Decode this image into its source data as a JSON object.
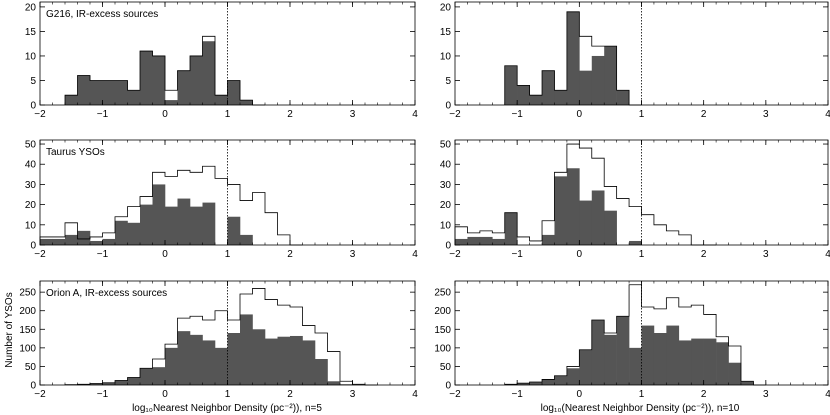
{
  "figure": {
    "ylabel_left": "Number of YSOs",
    "xlabel_left": "log₁₀Nearest Neighbor Density (pc⁻²)), n=5",
    "xlabel_right": "log₁₀(Nearest Neighbor Density (pc⁻²)), n=10"
  },
  "chart_data": [
    {
      "type": "bar",
      "panel": "row1-left",
      "annotation": "G216, IR-excess sources",
      "bin_width": 0.2,
      "xlim": [
        -2,
        4
      ],
      "ylim": [
        0,
        21
      ],
      "xticks": [
        -2,
        -1,
        0,
        1,
        2,
        3,
        4
      ],
      "yticks": [
        0,
        5,
        10,
        15,
        20
      ],
      "reference_line_x": 1,
      "series": [
        {
          "name": "",
          "style": "filled",
          "bin_starts": [
            -1.6,
            -1.4,
            -1.2,
            -1.0,
            -0.8,
            -0.6,
            -0.4,
            -0.2,
            0.0,
            0.2,
            0.4,
            0.6,
            0.8,
            1.0,
            1.2,
            1.4
          ],
          "values": [
            2,
            6,
            5,
            5,
            5,
            3,
            11,
            10,
            1,
            7,
            10,
            13,
            2,
            5,
            1,
            0
          ]
        },
        {
          "name": "",
          "style": "outline",
          "bin_starts": [
            -1.6,
            -1.4,
            -1.2,
            -1.0,
            -0.8,
            -0.6,
            -0.4,
            -0.2,
            0.0,
            0.2,
            0.4,
            0.6,
            0.8,
            1.0,
            1.2,
            1.4
          ],
          "values": [
            2,
            6,
            5,
            5,
            5,
            3,
            11,
            10,
            3,
            7,
            10,
            14,
            2,
            5,
            1,
            0
          ]
        }
      ]
    },
    {
      "type": "bar",
      "panel": "row1-right",
      "annotation": "",
      "bin_width": 0.2,
      "xlim": [
        -2,
        4
      ],
      "ylim": [
        0,
        21
      ],
      "xticks": [
        -2,
        -1,
        0,
        1,
        2,
        3,
        4
      ],
      "yticks": [
        0,
        5,
        10,
        15,
        20
      ],
      "reference_line_x": 1,
      "series": [
        {
          "name": "",
          "style": "filled",
          "bin_starts": [
            -1.2,
            -1.0,
            -0.8,
            -0.6,
            -0.4,
            -0.2,
            0.0,
            0.2,
            0.4,
            0.6,
            0.8
          ],
          "values": [
            8,
            4,
            2,
            7,
            3,
            19,
            7,
            10,
            12,
            3,
            0
          ]
        },
        {
          "name": "",
          "style": "outline",
          "bin_starts": [
            -1.2,
            -1.0,
            -0.8,
            -0.6,
            -0.4,
            -0.2,
            0.0,
            0.2,
            0.4,
            0.6,
            0.8
          ],
          "values": [
            8,
            4,
            2,
            7,
            3,
            19,
            14,
            12,
            12,
            3,
            0
          ]
        }
      ]
    },
    {
      "type": "bar",
      "panel": "row2-left",
      "annotation": "Taurus YSOs",
      "bin_width": 0.2,
      "xlim": [
        -2,
        4
      ],
      "ylim": [
        0,
        52
      ],
      "xticks": [
        -2,
        -1,
        0,
        1,
        2,
        3,
        4
      ],
      "yticks": [
        0,
        10,
        20,
        30,
        40,
        50
      ],
      "reference_line_x": 1,
      "series": [
        {
          "name": "",
          "style": "filled",
          "bin_starts": [
            -2.0,
            -1.8,
            -1.6,
            -1.4,
            -1.2,
            -1.0,
            -0.8,
            -0.6,
            -0.4,
            -0.2,
            0.0,
            0.2,
            0.4,
            0.6,
            0.8,
            1.0,
            1.2,
            1.4,
            1.6,
            1.8,
            2.0
          ],
          "values": [
            3,
            3,
            5,
            7,
            2,
            3,
            12,
            11,
            20,
            30,
            19,
            23,
            19,
            21,
            0,
            14,
            5,
            0,
            0,
            0,
            0
          ]
        },
        {
          "name": "",
          "style": "outline",
          "bin_starts": [
            -2.0,
            -1.8,
            -1.6,
            -1.4,
            -1.2,
            -1.0,
            -0.8,
            -0.6,
            -0.4,
            -0.2,
            0.0,
            0.2,
            0.4,
            0.6,
            0.8,
            1.0,
            1.2,
            1.4,
            1.6,
            1.8,
            2.0
          ],
          "values": [
            4,
            4,
            11,
            3,
            4,
            6,
            14,
            19,
            24,
            36,
            34,
            37,
            36,
            39,
            33,
            30,
            22,
            26,
            16,
            5,
            0
          ]
        }
      ]
    },
    {
      "type": "bar",
      "panel": "row2-right",
      "annotation": "",
      "bin_width": 0.2,
      "xlim": [
        -2,
        4
      ],
      "ylim": [
        0,
        52
      ],
      "xticks": [
        -2,
        -1,
        0,
        1,
        2,
        3,
        4
      ],
      "yticks": [
        0,
        10,
        20,
        30,
        40,
        50
      ],
      "reference_line_x": 1,
      "series": [
        {
          "name": "",
          "style": "filled",
          "bin_starts": [
            -2.0,
            -1.8,
            -1.6,
            -1.4,
            -1.2,
            -1.0,
            -0.8,
            -0.6,
            -0.4,
            -0.2,
            0.0,
            0.2,
            0.4,
            0.6,
            0.8,
            1.0,
            1.2,
            1.4,
            1.6,
            1.8,
            2.0
          ],
          "values": [
            3,
            4,
            4,
            3,
            16,
            0,
            0,
            5,
            34,
            38,
            22,
            27,
            17,
            0,
            2,
            0,
            0,
            0,
            0,
            0,
            0
          ]
        },
        {
          "name": "",
          "style": "outline",
          "bin_starts": [
            -2.0,
            -1.8,
            -1.6,
            -1.4,
            -1.2,
            -1.0,
            -0.8,
            -0.6,
            -0.4,
            -0.2,
            0.0,
            0.2,
            0.4,
            0.6,
            0.8,
            1.0,
            1.2,
            1.4,
            1.6,
            1.8,
            2.0
          ],
          "values": [
            9,
            6,
            7,
            6,
            16,
            4,
            2,
            12,
            36,
            50,
            48,
            43,
            29,
            23,
            19,
            15,
            10,
            7,
            5,
            0,
            0
          ]
        }
      ]
    },
    {
      "type": "bar",
      "panel": "row3-left",
      "annotation": "Orion A, IR-excess sources",
      "bin_width": 0.2,
      "xlim": [
        -2,
        4
      ],
      "ylim": [
        0,
        280
      ],
      "xticks": [
        -2,
        -1,
        0,
        1,
        2,
        3,
        4
      ],
      "yticks": [
        0,
        50,
        100,
        150,
        200,
        250
      ],
      "reference_line_x": 1,
      "series": [
        {
          "name": "",
          "style": "filled",
          "bin_starts": [
            -1.6,
            -1.4,
            -1.2,
            -1.0,
            -0.8,
            -0.6,
            -0.4,
            -0.2,
            0.0,
            0.2,
            0.4,
            0.6,
            0.8,
            1.0,
            1.2,
            1.4,
            1.6,
            1.8,
            2.0,
            2.2,
            2.4,
            2.6,
            2.8,
            3.0,
            3.2
          ],
          "values": [
            1,
            2,
            4,
            6,
            12,
            20,
            45,
            48,
            100,
            145,
            135,
            120,
            100,
            140,
            190,
            150,
            125,
            130,
            132,
            120,
            70,
            10,
            2,
            0,
            0
          ]
        },
        {
          "name": "",
          "style": "outline",
          "bin_starts": [
            -1.6,
            -1.4,
            -1.2,
            -1.0,
            -0.8,
            -0.6,
            -0.4,
            -0.2,
            0.0,
            0.2,
            0.4,
            0.6,
            0.8,
            1.0,
            1.2,
            1.4,
            1.6,
            1.8,
            2.0,
            2.2,
            2.4,
            2.6,
            2.8,
            3.0,
            3.2
          ],
          "values": [
            1,
            2,
            4,
            6,
            12,
            20,
            45,
            70,
            110,
            180,
            185,
            175,
            200,
            175,
            245,
            260,
            230,
            215,
            210,
            160,
            140,
            90,
            10,
            2,
            0
          ]
        }
      ]
    },
    {
      "type": "bar",
      "panel": "row3-right",
      "annotation": "",
      "bin_width": 0.2,
      "xlim": [
        -2,
        4
      ],
      "ylim": [
        0,
        280
      ],
      "xticks": [
        -2,
        -1,
        0,
        1,
        2,
        3,
        4
      ],
      "yticks": [
        0,
        50,
        100,
        150,
        200,
        250
      ],
      "reference_line_x": 1,
      "series": [
        {
          "name": "",
          "style": "filled",
          "bin_starts": [
            -1.2,
            -1.0,
            -0.8,
            -0.6,
            -0.4,
            -0.2,
            0.0,
            0.2,
            0.4,
            0.6,
            0.8,
            1.0,
            1.2,
            1.4,
            1.6,
            1.8,
            2.0,
            2.2,
            2.4,
            2.6,
            2.8
          ],
          "values": [
            2,
            5,
            8,
            15,
            25,
            45,
            95,
            175,
            135,
            185,
            100,
            160,
            140,
            160,
            120,
            125,
            125,
            115,
            60,
            10,
            0
          ]
        },
        {
          "name": "",
          "style": "outline",
          "bin_starts": [
            -1.2,
            -1.0,
            -0.8,
            -0.6,
            -0.4,
            -0.2,
            0.0,
            0.2,
            0.4,
            0.6,
            0.8,
            1.0,
            1.2,
            1.4,
            1.6,
            1.8,
            2.0,
            2.2,
            2.4,
            2.6,
            2.8
          ],
          "values": [
            2,
            5,
            8,
            15,
            25,
            50,
            95,
            175,
            140,
            185,
            270,
            210,
            205,
            235,
            210,
            215,
            190,
            130,
            105,
            10,
            0
          ]
        }
      ]
    }
  ]
}
